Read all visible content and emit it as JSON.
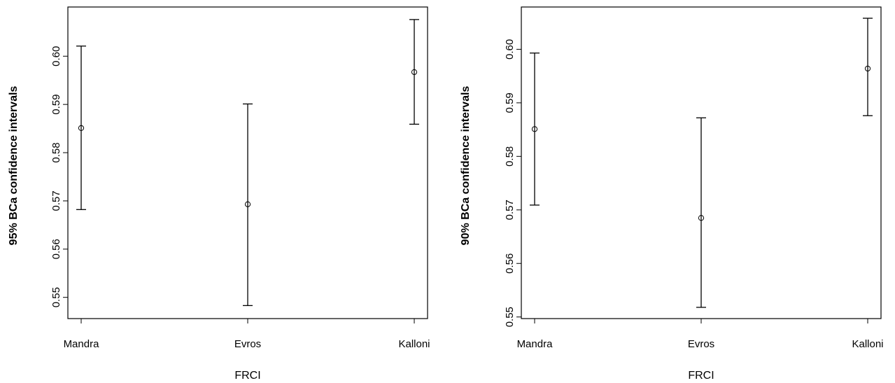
{
  "chart_data": [
    {
      "type": "scatter",
      "xlabel": "FRCI",
      "ylabel": "95% BCa confidence intervals",
      "categories": [
        "Mandra",
        "Evros",
        "Kalloni"
      ],
      "points": [
        {
          "category": "Mandra",
          "estimate": 0.5851,
          "lower": 0.5682,
          "upper": 0.6021
        },
        {
          "category": "Evros",
          "estimate": 0.5693,
          "lower": 0.5483,
          "upper": 0.5901
        },
        {
          "category": "Kalloni",
          "estimate": 0.5967,
          "lower": 0.5859,
          "upper": 0.6076
        }
      ],
      "yticks": [
        0.55,
        0.56,
        0.57,
        0.58,
        0.59,
        0.6
      ],
      "ytick_labels": [
        "0.55",
        "0.56",
        "0.57",
        "0.58",
        "0.59",
        "0.60"
      ],
      "ylim": [
        0.5456,
        0.6102
      ],
      "grid": false
    },
    {
      "type": "scatter",
      "xlabel": "FRCI",
      "ylabel": "90% BCa confidence intervals",
      "categories": [
        "Mandra",
        "Evros",
        "Kalloni"
      ],
      "points": [
        {
          "category": "Mandra",
          "estimate": 0.5851,
          "lower": 0.5709,
          "upper": 0.5993
        },
        {
          "category": "Evros",
          "estimate": 0.5685,
          "lower": 0.5518,
          "upper": 0.5872
        },
        {
          "category": "Kalloni",
          "estimate": 0.5964,
          "lower": 0.5876,
          "upper": 0.6058
        }
      ],
      "yticks": [
        0.55,
        0.56,
        0.57,
        0.58,
        0.59,
        0.6
      ],
      "ytick_labels": [
        "0.55",
        "0.56",
        "0.57",
        "0.58",
        "0.59",
        "0.60"
      ],
      "ylim": [
        0.5497,
        0.6079
      ],
      "grid": false
    }
  ]
}
